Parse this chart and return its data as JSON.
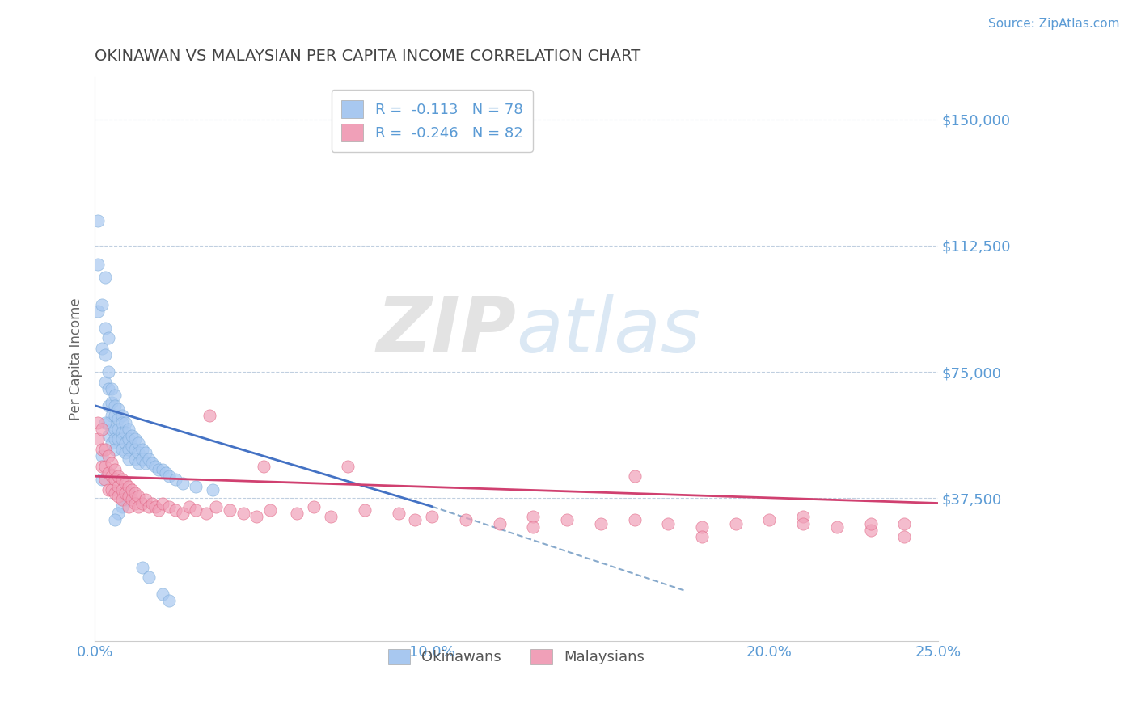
{
  "title": "OKINAWAN VS MALAYSIAN PER CAPITA INCOME CORRELATION CHART",
  "source": "Source: ZipAtlas.com",
  "ylabel": "Per Capita Income",
  "xlim": [
    0.0,
    0.25
  ],
  "ylim": [
    -5000,
    162500
  ],
  "yticks": [
    0,
    37500,
    75000,
    112500,
    150000
  ],
  "ytick_labels": [
    "",
    "$37,500",
    "$75,000",
    "$112,500",
    "$150,000"
  ],
  "xticks": [
    0.0,
    0.05,
    0.1,
    0.15,
    0.2,
    0.25
  ],
  "xtick_labels": [
    "0.0%",
    "",
    "10.0%",
    "",
    "20.0%",
    "25.0%"
  ],
  "okinawan_color": "#a8c8f0",
  "okinawan_edge_color": "#7aaad8",
  "malaysian_color": "#f0a0b8",
  "malaysian_edge_color": "#e06080",
  "okinawan_line_color": "#4472c4",
  "malaysian_line_color": "#d04070",
  "dashed_line_color": "#88aacc",
  "background_color": "#ffffff",
  "grid_color": "#c0cfe0",
  "title_color": "#444444",
  "axis_label_color": "#666666",
  "tick_color": "#5b9bd5",
  "source_color": "#5b9bd5",
  "legend_label_1": "R =  -0.113   N = 78",
  "legend_label_2": "R =  -0.246   N = 82",
  "okinawan_scatter_x": [
    0.001,
    0.001,
    0.001,
    0.002,
    0.003,
    0.002,
    0.003,
    0.003,
    0.003,
    0.004,
    0.004,
    0.004,
    0.004,
    0.004,
    0.005,
    0.005,
    0.005,
    0.005,
    0.005,
    0.006,
    0.006,
    0.006,
    0.006,
    0.006,
    0.006,
    0.007,
    0.007,
    0.007,
    0.007,
    0.008,
    0.008,
    0.008,
    0.008,
    0.008,
    0.009,
    0.009,
    0.009,
    0.009,
    0.01,
    0.01,
    0.01,
    0.01,
    0.011,
    0.011,
    0.012,
    0.012,
    0.012,
    0.013,
    0.013,
    0.013,
    0.014,
    0.014,
    0.015,
    0.015,
    0.016,
    0.017,
    0.018,
    0.019,
    0.02,
    0.021,
    0.022,
    0.024,
    0.026,
    0.03,
    0.035,
    0.004,
    0.003,
    0.002,
    0.002,
    0.01,
    0.009,
    0.008,
    0.007,
    0.006,
    0.014,
    0.016,
    0.02,
    0.022
  ],
  "okinawan_scatter_y": [
    120000,
    107000,
    93000,
    95000,
    103000,
    82000,
    88000,
    80000,
    72000,
    75000,
    70000,
    65000,
    60000,
    56000,
    70000,
    66000,
    62000,
    58000,
    54000,
    68000,
    65000,
    62000,
    58000,
    55000,
    52000,
    64000,
    61000,
    58000,
    55000,
    62000,
    60000,
    57000,
    55000,
    52000,
    60000,
    57000,
    54000,
    51000,
    58000,
    55000,
    52000,
    49000,
    56000,
    53000,
    55000,
    52000,
    49000,
    54000,
    51000,
    48000,
    52000,
    49000,
    51000,
    48000,
    49000,
    48000,
    47000,
    46000,
    46000,
    45000,
    44000,
    43000,
    42000,
    41000,
    40000,
    85000,
    60000,
    50000,
    43000,
    39000,
    37000,
    35000,
    33000,
    31000,
    17000,
    14000,
    9000,
    7000
  ],
  "malaysian_scatter_x": [
    0.001,
    0.001,
    0.002,
    0.002,
    0.002,
    0.003,
    0.003,
    0.003,
    0.004,
    0.004,
    0.004,
    0.005,
    0.005,
    0.005,
    0.006,
    0.006,
    0.006,
    0.007,
    0.007,
    0.007,
    0.008,
    0.008,
    0.008,
    0.009,
    0.009,
    0.01,
    0.01,
    0.01,
    0.011,
    0.011,
    0.012,
    0.012,
    0.013,
    0.013,
    0.014,
    0.015,
    0.016,
    0.017,
    0.018,
    0.019,
    0.02,
    0.022,
    0.024,
    0.026,
    0.028,
    0.03,
    0.033,
    0.036,
    0.04,
    0.044,
    0.048,
    0.052,
    0.06,
    0.065,
    0.07,
    0.08,
    0.09,
    0.1,
    0.11,
    0.12,
    0.13,
    0.14,
    0.15,
    0.16,
    0.17,
    0.18,
    0.19,
    0.2,
    0.21,
    0.22,
    0.23,
    0.24,
    0.034,
    0.05,
    0.075,
    0.095,
    0.13,
    0.16,
    0.18,
    0.21,
    0.23,
    0.24
  ],
  "malaysian_scatter_y": [
    60000,
    55000,
    58000,
    52000,
    47000,
    52000,
    47000,
    43000,
    50000,
    45000,
    40000,
    48000,
    44000,
    40000,
    46000,
    43000,
    39000,
    44000,
    41000,
    38000,
    43000,
    40000,
    37000,
    42000,
    39000,
    41000,
    38000,
    35000,
    40000,
    37000,
    39000,
    36000,
    38000,
    35000,
    36000,
    37000,
    35000,
    36000,
    35000,
    34000,
    36000,
    35000,
    34000,
    33000,
    35000,
    34000,
    33000,
    35000,
    34000,
    33000,
    32000,
    34000,
    33000,
    35000,
    32000,
    34000,
    33000,
    32000,
    31000,
    30000,
    32000,
    31000,
    30000,
    31000,
    30000,
    29000,
    30000,
    31000,
    32000,
    29000,
    28000,
    30000,
    62000,
    47000,
    47000,
    31000,
    29000,
    44000,
    26000,
    30000,
    30000,
    26000
  ]
}
